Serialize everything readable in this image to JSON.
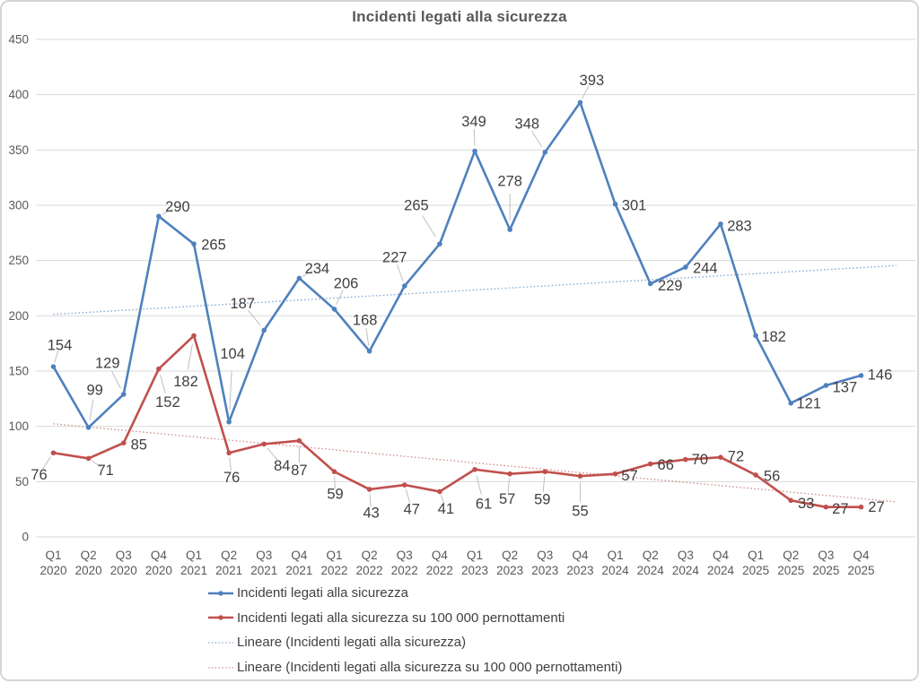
{
  "chart_data": {
    "type": "line",
    "title": "Incidenti legati alla sicurezza",
    "categories": [
      "Q1 2020",
      "Q2 2020",
      "Q3 2020",
      "Q4 2020",
      "Q1 2021",
      "Q2 2021",
      "Q3 2021",
      "Q4 2021",
      "Q1 2022",
      "Q2 2022",
      "Q3 2022",
      "Q4 2022",
      "Q1 2023",
      "Q2 2023",
      "Q3 2023",
      "Q4 2023",
      "Q1 2024",
      "Q2 2024",
      "Q3 2024",
      "Q4 2024",
      "Q1 2025",
      "Q2 2025",
      "Q3 2025",
      "Q4 2025"
    ],
    "series": [
      {
        "name": "Incidenti legati alla sicurezza",
        "color": "#4F81BD",
        "values": [
          154,
          99,
          129,
          290,
          265,
          104,
          187,
          234,
          206,
          168,
          227,
          265,
          349,
          278,
          348,
          393,
          301,
          229,
          244,
          283,
          182,
          121,
          137,
          146
        ]
      },
      {
        "name": "Incidenti legati alla sicurezza su 100 000 pernottamenti",
        "color": "#C0504D",
        "values": [
          76,
          71,
          85,
          152,
          182,
          76,
          84,
          87,
          59,
          43,
          47,
          41,
          61,
          57,
          59,
          55,
          57,
          66,
          70,
          72,
          56,
          33,
          27,
          27
        ]
      }
    ],
    "trendlines": [
      {
        "name": "Lineare (Incidenti legati alla sicurezza)",
        "series": 0,
        "color": "#8EAFD6",
        "style": "dotted"
      },
      {
        "name": "Lineare (Incidenti legati alla sicurezza su 100 000 pernottamenti)",
        "series": 1,
        "color": "#D59693",
        "style": "dotted"
      }
    ],
    "y_axis": {
      "min": 0,
      "max": 450,
      "step": 50
    },
    "grid": true,
    "data_labels": true,
    "legend_position": "bottom-left",
    "label_color": "#404040",
    "axis_color": "#595959",
    "gridline_color": "#D9D9D9"
  }
}
